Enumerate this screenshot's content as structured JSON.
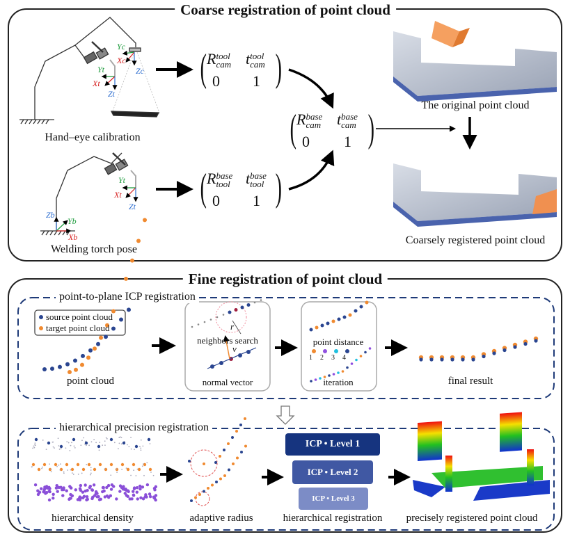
{
  "coarse": {
    "title": "Coarse registration of point cloud",
    "hand_eye_label": "Hand–eye calibration",
    "torch_pose_label": "Welding torch pose",
    "original_label": "The original point cloud",
    "coarse_label": "Coarsely registered point cloud",
    "axes1": {
      "yc": "Yc",
      "xc": "Xc",
      "zc": "Zc",
      "yt": "Yt",
      "xt": "Xt",
      "zt": "Zt"
    },
    "axes2": {
      "yt": "Yt",
      "xt": "Xt",
      "zt": "Zt",
      "zb": "Zb",
      "yb": "Yb",
      "xb": "Xb"
    },
    "matrix_tool_cam": {
      "R": "R",
      "t": "t",
      "sup": "tool",
      "sub": "cam",
      "zero": "0",
      "one": "1"
    },
    "matrix_base_tool": {
      "R": "R",
      "t": "t",
      "sup": "base",
      "sub": "tool",
      "zero": "0",
      "one": "1"
    },
    "matrix_base_cam": {
      "R": "R",
      "t": "t",
      "sup": "base",
      "sub": "cam",
      "zero": "0",
      "one": "1"
    }
  },
  "fine": {
    "title": "Fine registration of point cloud",
    "icp_section": "point-to-plane ICP registration",
    "legend": {
      "source": "source point cloud",
      "target": "target point cloud"
    },
    "point_cloud_label": "point cloud",
    "neighbors_label": "neighbors search",
    "r_label": "r",
    "normal_label": "normal vector",
    "v_label": "v",
    "distance_label": "point distance",
    "iter_steps": [
      "1",
      "2",
      "3",
      "4"
    ],
    "iteration_label": "iteration",
    "final_label": "final result",
    "hier_section": "hierarchical precision registration",
    "density_label": "hierarchical density",
    "radius_label": "adaptive radius",
    "hier_reg_label": "hierarchical registration",
    "precise_label": "precisely registered point cloud",
    "icp_levels": [
      "ICP  •  Level 1",
      "ICP  •  Level 2",
      "ICP  •  Level 3"
    ],
    "colors": {
      "source": "#2a4590",
      "target": "#f08a30",
      "density": "#8a4fd8",
      "level1": "#16347f",
      "level2": "#4058a3",
      "level3": "#7c8cc6"
    }
  }
}
